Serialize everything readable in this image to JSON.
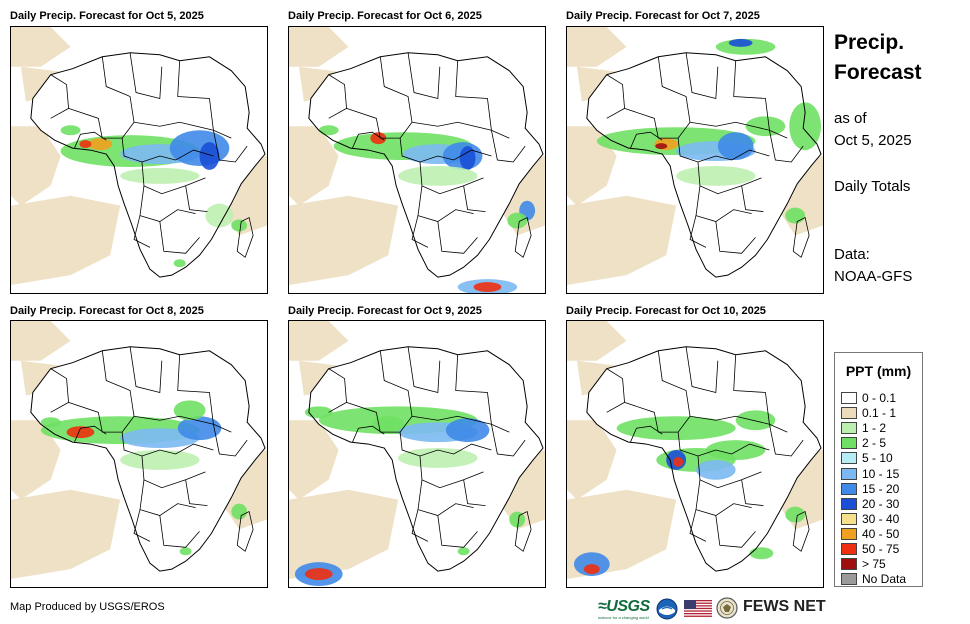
{
  "panels": [
    {
      "title": "Daily Precip. Forecast for Oct 5, 2025"
    },
    {
      "title": "Daily Precip. Forecast for Oct 6, 2025"
    },
    {
      "title": "Daily Precip. Forecast for Oct 7, 2025"
    },
    {
      "title": "Daily Precip. Forecast for Oct 8, 2025"
    },
    {
      "title": "Daily Precip. Forecast for Oct 9, 2025"
    },
    {
      "title": "Daily Precip. Forecast for Oct 10, 2025"
    }
  ],
  "side": {
    "title_line1": "Precip.",
    "title_line2": "Forecast",
    "as_of_line1": "as of",
    "as_of_line2": "Oct 5, 2025",
    "totals": "Daily Totals",
    "data_line1": "Data:",
    "data_line2": "NOAA-GFS"
  },
  "legend": {
    "title": "PPT (mm)",
    "items": [
      {
        "label": "0 - 0.1",
        "color": "#ffffff"
      },
      {
        "label": "0.1 - 1",
        "color": "#ecdcbc"
      },
      {
        "label": "1 - 2",
        "color": "#bdf0b0"
      },
      {
        "label": "2 - 5",
        "color": "#6fe063"
      },
      {
        "label": "5 - 10",
        "color": "#b7ecf2"
      },
      {
        "label": "10 - 15",
        "color": "#7cb9f2"
      },
      {
        "label": "15 - 20",
        "color": "#3f8ae8"
      },
      {
        "label": "20 - 30",
        "color": "#1a4fd6"
      },
      {
        "label": "30 - 40",
        "color": "#f7e08c"
      },
      {
        "label": "40 - 50",
        "color": "#f0a020"
      },
      {
        "label": "50 - 75",
        "color": "#ee3010"
      },
      {
        "label": "> 75",
        "color": "#9e1010"
      },
      {
        "label": "No Data",
        "color": "#9a9a9a"
      }
    ]
  },
  "footer": {
    "credit": "Map Produced by USGS/EROS",
    "usgs": "≈USGS",
    "usgs_tagline": "science for a changing world",
    "fews": "FEWS NET"
  }
}
